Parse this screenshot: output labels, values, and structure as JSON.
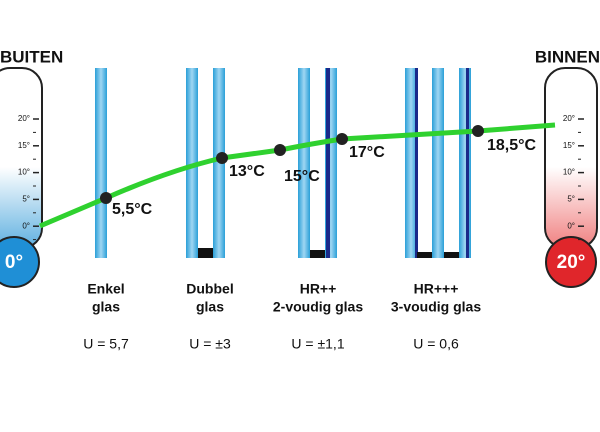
{
  "thermometers": [
    {
      "label": "BUITEN",
      "bulb": "0°",
      "ticks": [
        "20°",
        "15°",
        "10°",
        "5°",
        "0°"
      ]
    },
    {
      "label": "BINNEN",
      "bulb": "20°",
      "ticks": [
        "20°",
        "15°",
        "10°",
        "5°",
        "0°"
      ]
    }
  ],
  "glazing": [
    {
      "name": [
        "Enkel",
        "glas"
      ],
      "u": "U = 5,7"
    },
    {
      "name": [
        "Dubbel",
        "glas"
      ],
      "u": "U = ±3"
    },
    {
      "name": [
        "HR++",
        "2-voudig glas"
      ],
      "u": "U = ±1,1"
    },
    {
      "name": [
        "HR+++",
        "3-voudig glas"
      ],
      "u": "U = 0,6"
    }
  ],
  "temperatures": [
    "5,5°C",
    "13°C",
    "15°C",
    "17°C",
    "18,5°C"
  ]
}
